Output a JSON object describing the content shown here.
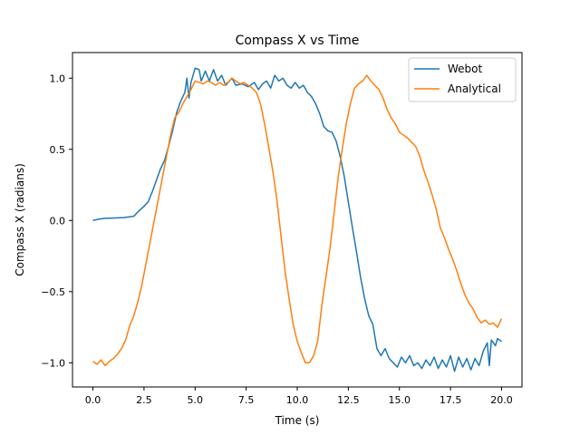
{
  "chart_data": {
    "type": "line",
    "title": "Compass X vs Time",
    "xlabel": "Time (s)",
    "ylabel": "Compass X (radians)",
    "xlim": [
      -1.0,
      21.0
    ],
    "ylim": [
      -1.17,
      1.18
    ],
    "xticks": [
      0.0,
      2.5,
      5.0,
      7.5,
      10.0,
      12.5,
      15.0,
      17.5,
      20.0
    ],
    "xtick_labels": [
      "0.0",
      "2.5",
      "5.0",
      "7.5",
      "10.0",
      "12.5",
      "15.0",
      "17.5",
      "20.0"
    ],
    "yticks": [
      -1.0,
      -0.5,
      0.0,
      0.5,
      1.0
    ],
    "ytick_labels": [
      "−1.0",
      "−0.5",
      "0.0",
      "0.5",
      "1.0"
    ],
    "grid": false,
    "legend_position": "top-right",
    "series": [
      {
        "name": "Webot",
        "color": "#1f77b4",
        "points": [
          [
            0.0,
            0.0
          ],
          [
            0.3,
            0.01
          ],
          [
            0.6,
            0.015
          ],
          [
            1.0,
            0.017
          ],
          [
            1.5,
            0.02
          ],
          [
            2.0,
            0.03
          ],
          [
            2.2,
            0.06
          ],
          [
            2.5,
            0.1
          ],
          [
            2.7,
            0.13
          ],
          [
            2.9,
            0.2
          ],
          [
            3.1,
            0.28
          ],
          [
            3.3,
            0.36
          ],
          [
            3.5,
            0.42
          ],
          [
            3.7,
            0.52
          ],
          [
            3.9,
            0.63
          ],
          [
            4.1,
            0.76
          ],
          [
            4.3,
            0.84
          ],
          [
            4.5,
            0.9
          ],
          [
            4.6,
            1.0
          ],
          [
            4.7,
            0.86
          ],
          [
            4.8,
            0.97
          ],
          [
            5.0,
            1.07
          ],
          [
            5.2,
            1.06
          ],
          [
            5.3,
            0.98
          ],
          [
            5.5,
            1.05
          ],
          [
            5.7,
            0.98
          ],
          [
            5.9,
            1.06
          ],
          [
            6.1,
            0.98
          ],
          [
            6.3,
            1.02
          ],
          [
            6.5,
            0.95
          ],
          [
            6.8,
            1.0
          ],
          [
            7.0,
            0.95
          ],
          [
            7.3,
            0.96
          ],
          [
            7.6,
            0.94
          ],
          [
            7.9,
            0.97
          ],
          [
            8.1,
            0.92
          ],
          [
            8.3,
            0.96
          ],
          [
            8.5,
            0.98
          ],
          [
            8.7,
            0.93
          ],
          [
            8.9,
            1.02
          ],
          [
            9.1,
            0.98
          ],
          [
            9.3,
            1.0
          ],
          [
            9.5,
            0.95
          ],
          [
            9.7,
            0.93
          ],
          [
            9.9,
            0.97
          ],
          [
            10.1,
            0.93
          ],
          [
            10.3,
            0.95
          ],
          [
            10.5,
            0.9
          ],
          [
            10.7,
            0.87
          ],
          [
            10.9,
            0.82
          ],
          [
            11.1,
            0.75
          ],
          [
            11.3,
            0.66
          ],
          [
            11.5,
            0.63
          ],
          [
            11.7,
            0.62
          ],
          [
            11.9,
            0.56
          ],
          [
            12.1,
            0.45
          ],
          [
            12.3,
            0.31
          ],
          [
            12.5,
            0.13
          ],
          [
            12.7,
            -0.05
          ],
          [
            12.9,
            -0.22
          ],
          [
            13.1,
            -0.4
          ],
          [
            13.3,
            -0.55
          ],
          [
            13.5,
            -0.67
          ],
          [
            13.7,
            -0.73
          ],
          [
            13.9,
            -0.9
          ],
          [
            14.1,
            -0.95
          ],
          [
            14.3,
            -0.9
          ],
          [
            14.5,
            -0.97
          ],
          [
            14.7,
            -1.0
          ],
          [
            14.9,
            -1.03
          ],
          [
            15.1,
            -0.96
          ],
          [
            15.3,
            -1.0
          ],
          [
            15.5,
            -0.95
          ],
          [
            15.7,
            -1.02
          ],
          [
            15.9,
            -1.0
          ],
          [
            16.1,
            -1.04
          ],
          [
            16.3,
            -0.98
          ],
          [
            16.5,
            -1.02
          ],
          [
            16.7,
            -0.96
          ],
          [
            16.9,
            -1.04
          ],
          [
            17.1,
            -0.98
          ],
          [
            17.3,
            -1.03
          ],
          [
            17.5,
            -0.95
          ],
          [
            17.7,
            -1.06
          ],
          [
            17.9,
            -0.96
          ],
          [
            18.1,
            -1.03
          ],
          [
            18.3,
            -0.97
          ],
          [
            18.5,
            -1.05
          ],
          [
            18.7,
            -0.97
          ],
          [
            18.9,
            -1.02
          ],
          [
            19.1,
            -0.92
          ],
          [
            19.3,
            -0.86
          ],
          [
            19.4,
            -1.02
          ],
          [
            19.5,
            -0.84
          ],
          [
            19.7,
            -0.88
          ],
          [
            19.8,
            -0.83
          ],
          [
            20.0,
            -0.85
          ]
        ]
      },
      {
        "name": "Analytical",
        "color": "#ff7f0e",
        "points": [
          [
            0.0,
            -0.99
          ],
          [
            0.2,
            -1.01
          ],
          [
            0.4,
            -0.98
          ],
          [
            0.6,
            -1.02
          ],
          [
            0.8,
            -0.99
          ],
          [
            1.0,
            -0.97
          ],
          [
            1.2,
            -0.94
          ],
          [
            1.4,
            -0.9
          ],
          [
            1.6,
            -0.84
          ],
          [
            1.8,
            -0.74
          ],
          [
            2.0,
            -0.67
          ],
          [
            2.2,
            -0.57
          ],
          [
            2.4,
            -0.45
          ],
          [
            2.6,
            -0.3
          ],
          [
            2.8,
            -0.15
          ],
          [
            3.0,
            0.0
          ],
          [
            3.2,
            0.15
          ],
          [
            3.4,
            0.3
          ],
          [
            3.6,
            0.45
          ],
          [
            3.8,
            0.6
          ],
          [
            4.0,
            0.72
          ],
          [
            4.2,
            0.76
          ],
          [
            4.4,
            0.82
          ],
          [
            4.6,
            0.87
          ],
          [
            4.8,
            0.92
          ],
          [
            5.0,
            0.98
          ],
          [
            5.2,
            0.97
          ],
          [
            5.4,
            0.96
          ],
          [
            5.6,
            0.98
          ],
          [
            5.8,
            0.97
          ],
          [
            6.0,
            0.95
          ],
          [
            6.2,
            0.97
          ],
          [
            6.4,
            0.95
          ],
          [
            6.6,
            0.97
          ],
          [
            6.8,
            1.0
          ],
          [
            7.0,
            0.98
          ],
          [
            7.2,
            0.96
          ],
          [
            7.4,
            0.97
          ],
          [
            7.6,
            0.95
          ],
          [
            7.8,
            0.93
          ],
          [
            8.0,
            0.9
          ],
          [
            8.2,
            0.82
          ],
          [
            8.4,
            0.68
          ],
          [
            8.6,
            0.52
          ],
          [
            8.8,
            0.35
          ],
          [
            9.0,
            0.15
          ],
          [
            9.2,
            -0.1
          ],
          [
            9.4,
            -0.35
          ],
          [
            9.6,
            -0.55
          ],
          [
            9.8,
            -0.73
          ],
          [
            10.0,
            -0.85
          ],
          [
            10.2,
            -0.93
          ],
          [
            10.4,
            -1.0
          ],
          [
            10.6,
            -1.0
          ],
          [
            10.8,
            -0.95
          ],
          [
            11.0,
            -0.85
          ],
          [
            11.2,
            -0.6
          ],
          [
            11.4,
            -0.4
          ],
          [
            11.6,
            -0.2
          ],
          [
            11.8,
            0.05
          ],
          [
            12.0,
            0.3
          ],
          [
            12.2,
            0.5
          ],
          [
            12.4,
            0.68
          ],
          [
            12.6,
            0.82
          ],
          [
            12.8,
            0.93
          ],
          [
            13.0,
            0.96
          ],
          [
            13.2,
            0.98
          ],
          [
            13.4,
            1.02
          ],
          [
            13.6,
            0.98
          ],
          [
            13.8,
            0.95
          ],
          [
            14.0,
            0.92
          ],
          [
            14.2,
            0.86
          ],
          [
            14.4,
            0.78
          ],
          [
            14.6,
            0.72
          ],
          [
            14.8,
            0.68
          ],
          [
            15.0,
            0.62
          ],
          [
            15.2,
            0.6
          ],
          [
            15.4,
            0.58
          ],
          [
            15.6,
            0.55
          ],
          [
            15.8,
            0.52
          ],
          [
            16.0,
            0.45
          ],
          [
            16.2,
            0.35
          ],
          [
            16.4,
            0.27
          ],
          [
            16.6,
            0.18
          ],
          [
            16.8,
            0.08
          ],
          [
            17.0,
            -0.05
          ],
          [
            17.2,
            -0.12
          ],
          [
            17.4,
            -0.2
          ],
          [
            17.6,
            -0.27
          ],
          [
            17.8,
            -0.35
          ],
          [
            18.0,
            -0.44
          ],
          [
            18.2,
            -0.52
          ],
          [
            18.4,
            -0.58
          ],
          [
            18.6,
            -0.62
          ],
          [
            18.8,
            -0.68
          ],
          [
            19.0,
            -0.72
          ],
          [
            19.2,
            -0.7
          ],
          [
            19.4,
            -0.73
          ],
          [
            19.6,
            -0.72
          ],
          [
            19.8,
            -0.75
          ],
          [
            20.0,
            -0.69
          ]
        ]
      }
    ]
  }
}
